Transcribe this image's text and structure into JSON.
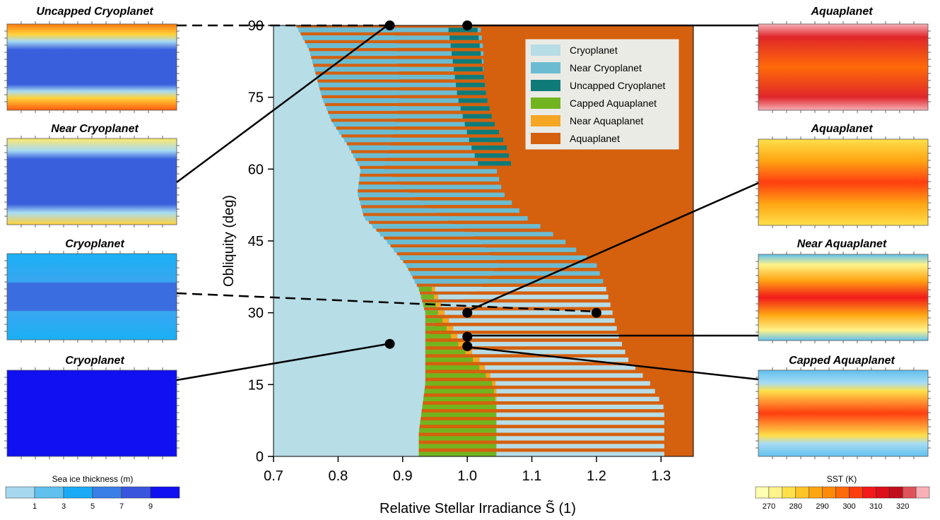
{
  "chart_data": {
    "type": "area",
    "xlabel": "Relative Stellar Irradiance S̃ (1)",
    "ylabel": "Obliquity (deg)",
    "xlim": [
      0.7,
      1.35
    ],
    "ylim": [
      0,
      90
    ],
    "xticks": [
      "0.7",
      "0.8",
      "0.9",
      "1.0",
      "1.1",
      "1.2",
      "1.3"
    ],
    "yticks": [
      "0",
      "15",
      "30",
      "45",
      "60",
      "75",
      "90"
    ],
    "legend_position": "top-right",
    "legend": [
      {
        "name": "Cryoplanet",
        "color": "#b7dde7"
      },
      {
        "name": "Near Cryoplanet",
        "color": "#6cbcd1"
      },
      {
        "name": "Uncapped Cryoplanet",
        "color": "#0f7b78"
      },
      {
        "name": "Capped Aquaplanet",
        "color": "#72b41f"
      },
      {
        "name": "Near Aquaplanet",
        "color": "#f5a623"
      },
      {
        "name": "Aquaplanet",
        "color": "#d5600e"
      }
    ],
    "regions": {
      "obliquity": [
        0,
        5,
        10,
        15,
        20,
        25,
        30,
        35,
        40,
        45,
        50,
        55,
        60,
        65,
        70,
        75,
        80,
        85,
        90
      ],
      "cryo_right_edge": [
        0.925,
        0.925,
        0.93,
        0.935,
        0.935,
        0.935,
        0.935,
        0.925,
        0.905,
        0.875,
        0.84,
        0.83,
        0.835,
        0.815,
        0.79,
        0.775,
        0.765,
        0.755,
        0.735
      ],
      "near_cryo_right_edge": [
        0.925,
        0.925,
        0.93,
        0.935,
        0.935,
        0.94,
        0.96,
        1.02,
        1.05,
        1.02,
        0.96,
        0.91,
        0.87,
        0.88,
        0.89,
        0.895,
        0.895,
        0.89,
        0.885
      ],
      "capped_aqua_right_edge": [
        1.045,
        1.045,
        1.045,
        1.04,
        1.01,
        0.975,
        0.955,
        0.945,
        null,
        null,
        null,
        null,
        null,
        null,
        null,
        null,
        null,
        null,
        null
      ],
      "near_aqua_right_edge": [
        1.045,
        1.045,
        1.045,
        1.045,
        1.02,
        0.985,
        0.965,
        0.95,
        null,
        null,
        null,
        null,
        null,
        null,
        null,
        null,
        null,
        null,
        null
      ],
      "uncapped_cryo_band": [
        null,
        null,
        null,
        null,
        null,
        null,
        null,
        null,
        null,
        null,
        null,
        null,
        [
          1.02,
          1.07
        ],
        [
          1.005,
          1.06
        ],
        [
          0.995,
          1.04
        ],
        [
          0.985,
          1.03
        ],
        [
          0.98,
          1.025
        ],
        [
          0.975,
          1.02
        ],
        [
          0.97,
          1.015
        ]
      ],
      "hatched_right_edge": [
        1.305,
        1.305,
        1.305,
        1.285,
        1.25,
        1.235,
        1.225,
        1.215,
        1.2,
        1.15,
        1.09,
        1.055,
        1.045,
        1.035,
        1.03,
        1.03,
        1.025,
        1.025,
        1.02
      ],
      "aquaplanet_right_edge": [
        1.35,
        1.35,
        1.35,
        1.35,
        1.35,
        1.35,
        1.35,
        1.35,
        1.35,
        1.35,
        1.35,
        1.35,
        1.35,
        1.35,
        1.35,
        1.35,
        1.35,
        1.35,
        1.35
      ]
    },
    "points": [
      {
        "x": 0.88,
        "y": 90,
        "state": "Uncapped Cryoplanet"
      },
      {
        "x": 1.0,
        "y": 90,
        "state": "Aquaplanet"
      },
      {
        "x": 1.0,
        "y": 30,
        "state": "Aquaplanet"
      },
      {
        "x": 1.2,
        "y": 30,
        "state": "Cryoplanet"
      },
      {
        "x": 1.0,
        "y": 25,
        "state": "Near Aquaplanet"
      },
      {
        "x": 1.0,
        "y": 23,
        "state": "Capped Aquaplanet"
      },
      {
        "x": 0.88,
        "y": 23.5,
        "state": "Cryoplanet"
      }
    ]
  },
  "left_panels": [
    {
      "title": "Uncapped Cryoplanet"
    },
    {
      "title": "Near Cryoplanet"
    },
    {
      "title": "Cryoplanet"
    },
    {
      "title": "Cryoplanet"
    }
  ],
  "right_panels": [
    {
      "title": "Aquaplanet"
    },
    {
      "title": "Aquaplanet"
    },
    {
      "title": "Near Aquaplanet"
    },
    {
      "title": "Capped Aquaplanet"
    }
  ],
  "colorbar_ice": {
    "title": "Sea ice thickness (m)",
    "labels": [
      "1",
      "3",
      "5",
      "7",
      "9"
    ],
    "colors": [
      "#a6d8f0",
      "#60c0ee",
      "#1aaaf5",
      "#3a7ee8",
      "#3a55dd",
      "#1010f0"
    ]
  },
  "colorbar_sst": {
    "title": "SST (K)",
    "labels": [
      "270",
      "280",
      "290",
      "300",
      "310",
      "320"
    ],
    "colors": [
      "#fffdb0",
      "#fff38a",
      "#ffe04a",
      "#ffc425",
      "#ffa512",
      "#ff8a0a",
      "#ff6a08",
      "#ff3e10",
      "#f21a1a",
      "#dd0f1a",
      "#c20d1c",
      "#e0525a",
      "#f6b0b6"
    ]
  }
}
